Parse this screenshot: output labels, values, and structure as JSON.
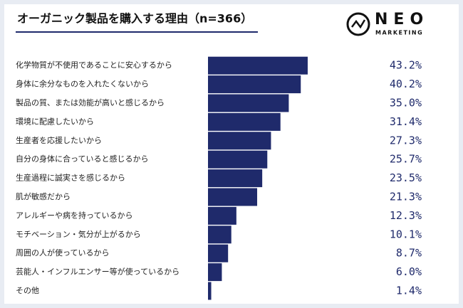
{
  "logo": {
    "name": "NEO",
    "sub": "MARKETING"
  },
  "chart_data": {
    "type": "bar",
    "orientation": "horizontal",
    "title": "オーガニック製品を購入する理由（n=366）",
    "categories": [
      "化学物質が不使用であることに安心するから",
      "身体に余分なものを入れたくないから",
      "製品の質、または効能が高いと感じるから",
      "環境に配慮したいから",
      "生産者を応援したいから",
      "自分の身体に合っていると感じるから",
      "生産過程に誠実さを感じるから",
      "肌が敏感だから",
      "アレルギーや病を持っているから",
      "モチベーション・気分が上がるから",
      "周囲の人が使っているから",
      "芸能人・インフルエンサー等が使っているから",
      "その他"
    ],
    "values": [
      43.2,
      40.2,
      35.0,
      31.4,
      27.3,
      25.7,
      23.5,
      21.3,
      12.3,
      10.1,
      8.7,
      6.0,
      1.4
    ],
    "value_labels": [
      "43.2%",
      "40.2%",
      "35.0%",
      "31.4%",
      "27.3%",
      "25.7%",
      "23.5%",
      "21.3%",
      "12.3%",
      "10.1%",
      "8.7%",
      "6.0%",
      "1.4%"
    ],
    "color": "#1f2a6b"
  }
}
